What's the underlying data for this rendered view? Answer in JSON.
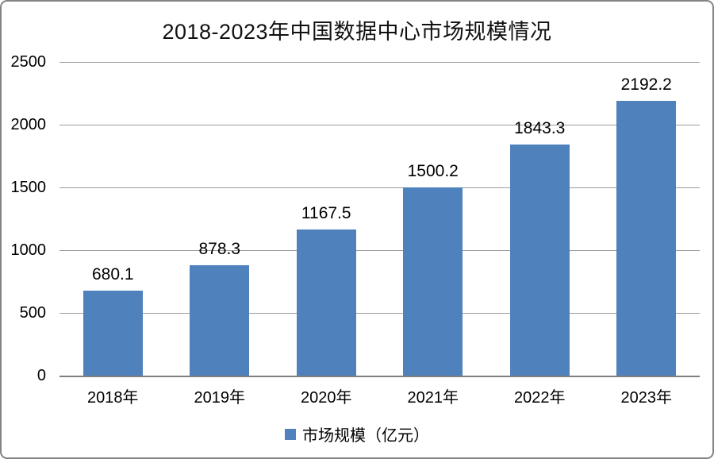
{
  "colors": {
    "bar": "#4F81BD",
    "gridline": "#9b9b9b",
    "axis_line": "#7f7f7f",
    "frame_border": "#848484"
  },
  "chart_data": {
    "type": "bar",
    "title": "2018-2023年中国数据中心市场规模情况",
    "categories": [
      "2018年",
      "2019年",
      "2020年",
      "2021年",
      "2022年",
      "2023年"
    ],
    "series": [
      {
        "name": "市场规模（亿元）",
        "values": [
          680.1,
          878.3,
          1167.5,
          1500.2,
          1843.3,
          2192.2
        ]
      }
    ],
    "value_labels": [
      "680.1",
      "878.3",
      "1167.5",
      "1500.2",
      "1843.3",
      "2192.2"
    ],
    "xlabel": "",
    "ylabel": "",
    "ylim": [
      0,
      2500
    ],
    "yticks": [
      0,
      500,
      1000,
      1500,
      2000,
      2500
    ],
    "grid": true,
    "legend": {
      "label": "市场规模（亿元）",
      "position": "bottom"
    }
  }
}
